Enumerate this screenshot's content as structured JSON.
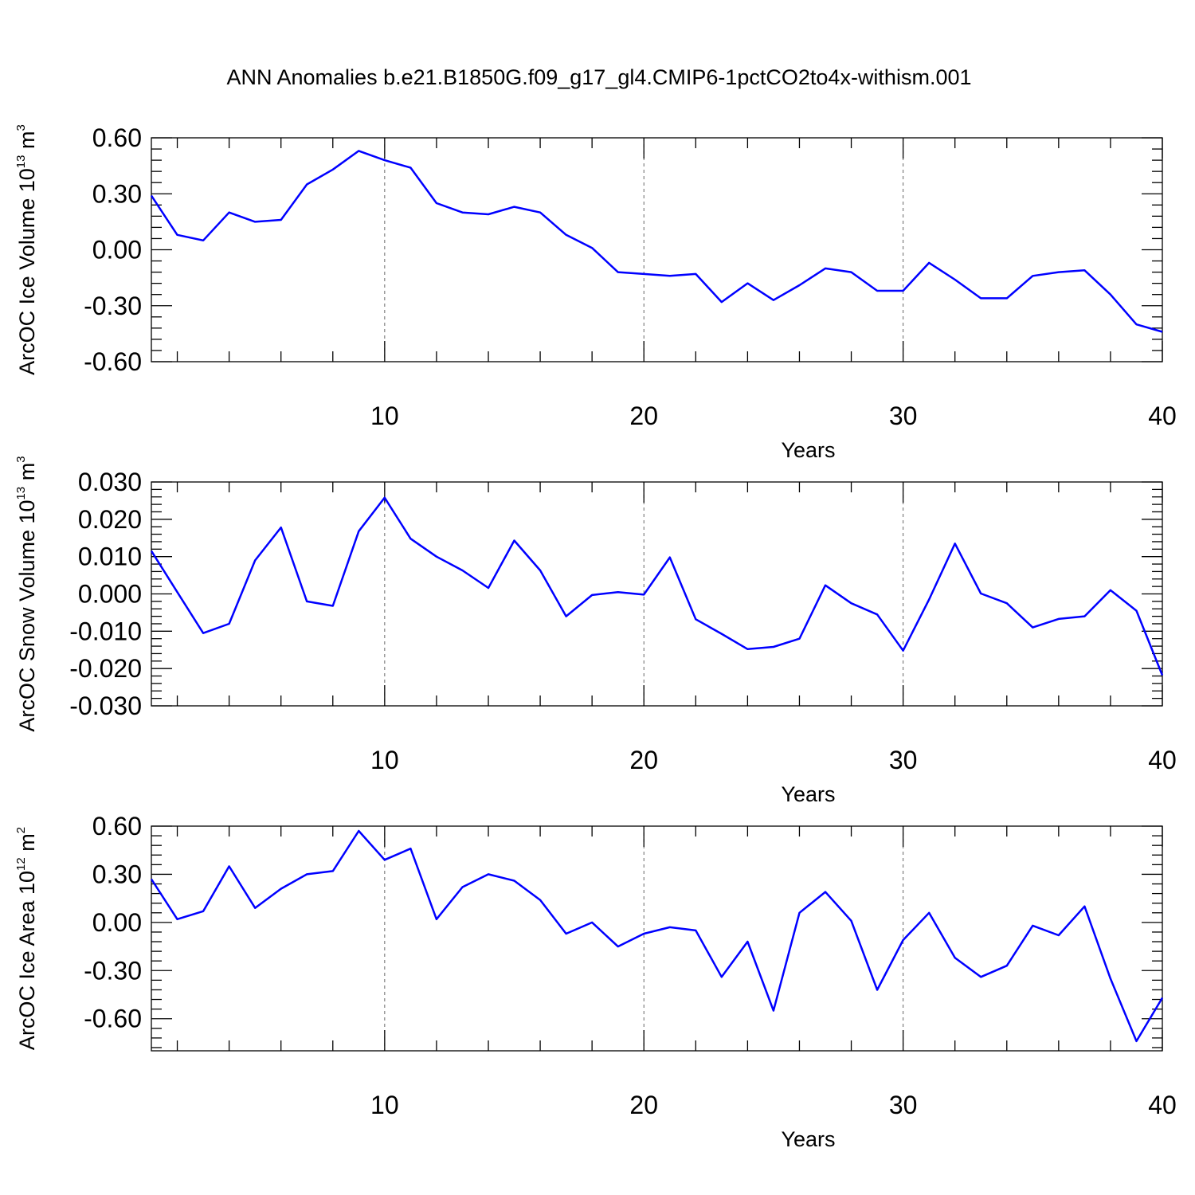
{
  "title": "ANN Anomalies b.e21.B1850G.f09_g17_gl4.CMIP6-1pctCO2to4x-withism.001",
  "colors": {
    "line": "#0000ff",
    "frame": "#000000",
    "grid": "#666666"
  },
  "chart_data": [
    {
      "type": "line",
      "ylabel": {
        "base": "ArcOC Ice Volume 10",
        "exp": "13",
        "unit": " m",
        "unit_exp": "3"
      },
      "xlabel": "Years",
      "xlim": [
        1,
        40
      ],
      "ylim": [
        -0.6,
        0.6
      ],
      "x_ticks": [
        "10",
        "20",
        "30",
        "40"
      ],
      "y_ticks": [
        "0.60",
        "0.30",
        "0.00",
        "-0.30",
        "-0.60"
      ],
      "grid_x": [
        10,
        20,
        30
      ],
      "x": [
        1,
        2,
        3,
        4,
        5,
        6,
        7,
        8,
        9,
        10,
        11,
        12,
        13,
        14,
        15,
        16,
        17,
        18,
        19,
        20,
        21,
        22,
        23,
        24,
        25,
        26,
        27,
        28,
        29,
        30,
        31,
        32,
        33,
        34,
        35,
        36,
        37,
        38,
        39,
        40
      ],
      "values": [
        0.29,
        0.08,
        0.05,
        0.2,
        0.15,
        0.16,
        0.35,
        0.43,
        0.53,
        0.48,
        0.44,
        0.25,
        0.2,
        0.19,
        0.23,
        0.2,
        0.08,
        0.01,
        -0.12,
        -0.13,
        -0.14,
        -0.13,
        -0.28,
        -0.18,
        -0.27,
        -0.19,
        -0.1,
        -0.12,
        -0.22,
        -0.22,
        -0.07,
        -0.16,
        -0.26,
        -0.26,
        -0.14,
        -0.12,
        -0.11,
        -0.24,
        -0.4,
        -0.44
      ]
    },
    {
      "type": "line",
      "ylabel": {
        "base": "ArcOC Snow Volume 10",
        "exp": "13",
        "unit": " m",
        "unit_exp": "3"
      },
      "xlabel": "Years",
      "xlim": [
        1,
        40
      ],
      "ylim": [
        -0.03,
        0.03
      ],
      "x_ticks": [
        "10",
        "20",
        "30",
        "40"
      ],
      "y_ticks": [
        "0.030",
        "0.020",
        "0.010",
        "0.000",
        "-0.010",
        "-0.020",
        "-0.030"
      ],
      "grid_x": [
        10,
        20,
        30
      ],
      "x": [
        1,
        2,
        3,
        4,
        5,
        6,
        7,
        8,
        9,
        10,
        11,
        12,
        13,
        14,
        15,
        16,
        17,
        18,
        19,
        20,
        21,
        22,
        23,
        24,
        25,
        26,
        27,
        28,
        29,
        30,
        31,
        32,
        33,
        34,
        35,
        36,
        37,
        38,
        39,
        40
      ],
      "values": [
        0.0115,
        0.0005,
        -0.0105,
        -0.008,
        0.009,
        0.0178,
        -0.002,
        -0.0032,
        0.0168,
        0.0258,
        0.0148,
        0.01,
        0.0063,
        0.0016,
        0.0143,
        0.0063,
        -0.006,
        -0.0003,
        0.0005,
        -0.0002,
        0.0098,
        -0.0068,
        -0.0107,
        -0.0148,
        -0.0142,
        -0.012,
        0.0023,
        -0.0025,
        -0.0055,
        -0.0152,
        -0.0015,
        0.0135,
        0.0001,
        -0.0025,
        -0.009,
        -0.0067,
        -0.006,
        0.001,
        -0.0045,
        -0.0218
      ]
    },
    {
      "type": "line",
      "ylabel": {
        "base": "ArcOC Ice Area 10",
        "exp": "12",
        "unit": " m",
        "unit_exp": "2"
      },
      "xlabel": "Years",
      "xlim": [
        1,
        40
      ],
      "ylim": [
        -0.8,
        0.6
      ],
      "x_ticks": [
        "10",
        "20",
        "30",
        "40"
      ],
      "y_ticks": [
        "0.60",
        "0.30",
        "0.00",
        "-0.30",
        "-0.60"
      ],
      "grid_x": [
        10,
        20,
        30
      ],
      "x": [
        1,
        2,
        3,
        4,
        5,
        6,
        7,
        8,
        9,
        10,
        11,
        12,
        13,
        14,
        15,
        16,
        17,
        18,
        19,
        20,
        21,
        22,
        23,
        24,
        25,
        26,
        27,
        28,
        29,
        30,
        31,
        32,
        33,
        34,
        35,
        36,
        37,
        38,
        39,
        40
      ],
      "values": [
        0.27,
        0.02,
        0.07,
        0.35,
        0.09,
        0.21,
        0.3,
        0.32,
        0.57,
        0.39,
        0.46,
        0.02,
        0.22,
        0.3,
        0.26,
        0.14,
        -0.07,
        0.0,
        -0.15,
        -0.07,
        -0.03,
        -0.05,
        -0.34,
        -0.12,
        -0.55,
        0.06,
        0.19,
        0.01,
        -0.42,
        -0.11,
        0.06,
        -0.22,
        -0.34,
        -0.27,
        -0.02,
        -0.08,
        0.1,
        -0.35,
        -0.74,
        -0.47
      ]
    }
  ]
}
